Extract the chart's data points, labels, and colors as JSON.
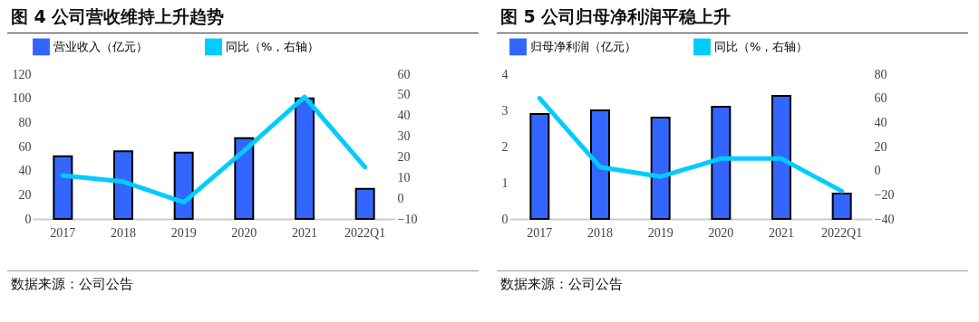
{
  "chart_data": [
    {
      "type": "bar",
      "title": "图 4  公司营收维持上升趋势",
      "categories": [
        "2017",
        "2018",
        "2019",
        "2020",
        "2021",
        "2022Q1"
      ],
      "series": [
        {
          "name": "营业收入（亿元）",
          "color": "#3366ff",
          "values": [
            52,
            56,
            55,
            67,
            100,
            25
          ]
        },
        {
          "name": "同比（%，右轴）",
          "type": "line",
          "axis": "y2",
          "color": "#00ccff",
          "values": [
            11,
            8,
            -2,
            23,
            49,
            15
          ]
        }
      ],
      "ylim": [
        0,
        120
      ],
      "yticks": [
        0,
        20,
        40,
        60,
        80,
        100,
        120
      ],
      "y2lim": [
        -10,
        60
      ],
      "y2ticks": [
        -10,
        0,
        10,
        20,
        30,
        40,
        50,
        60
      ],
      "legend": "top",
      "annotations": [
        "数据来源：公司公告"
      ]
    },
    {
      "type": "bar",
      "title": "图 5  公司归母净利润平稳上升",
      "categories": [
        "2017",
        "2018",
        "2019",
        "2020",
        "2021",
        "2022Q1"
      ],
      "series": [
        {
          "name": "归母净利润（亿元）",
          "color": "#3366ff",
          "values": [
            2.9,
            3.0,
            2.8,
            3.1,
            3.4,
            0.7
          ]
        },
        {
          "name": "同比（%，右轴）",
          "type": "line",
          "axis": "y2",
          "color": "#00ccff",
          "values": [
            60,
            3,
            -5,
            10,
            10,
            -17
          ]
        }
      ],
      "ylim": [
        0,
        4
      ],
      "yticks": [
        0,
        1,
        2,
        3,
        4
      ],
      "y2lim": [
        -40,
        80
      ],
      "y2ticks": [
        -40,
        -20,
        0,
        20,
        40,
        60,
        80
      ],
      "legend": "top",
      "annotations": [
        "数据来源：公司公告"
      ]
    }
  ]
}
